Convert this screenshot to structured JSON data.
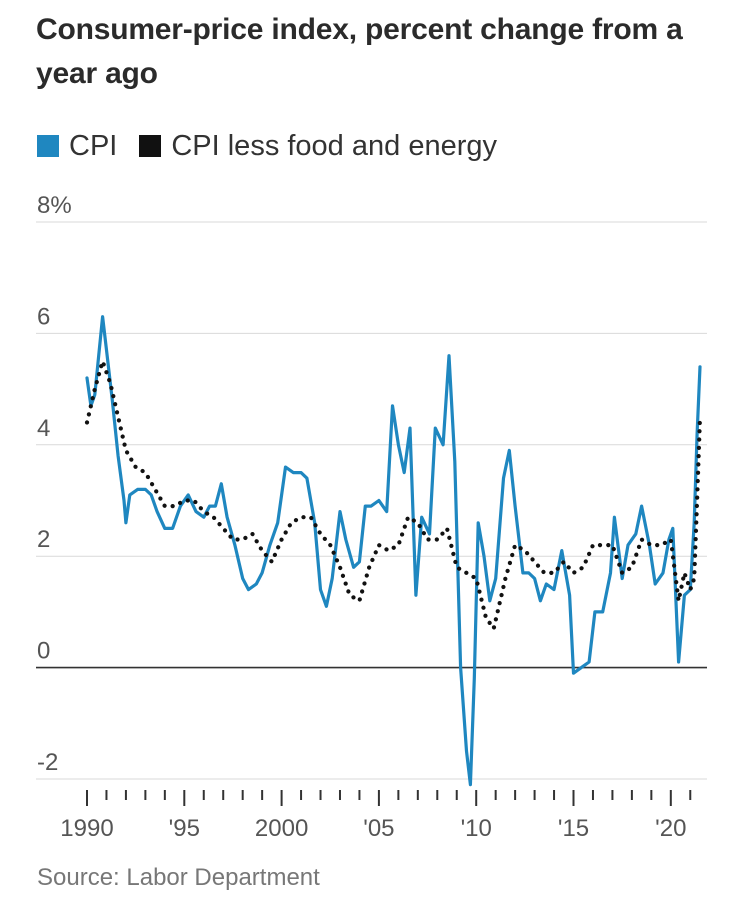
{
  "header": {
    "title": "Consumer-price index, percent change from a year ago"
  },
  "legend": [
    {
      "label": "CPI",
      "color": "#1f87c0",
      "style": "solid-line"
    },
    {
      "label": "CPI less food and energy",
      "color": "#111111",
      "style": "dotted-line"
    }
  ],
  "source": "Source: Labor Department",
  "chart_data": {
    "type": "line",
    "title": "Consumer-price index, percent change from a year ago",
    "xlabel": "",
    "ylabel": "",
    "xlim": [
      1990,
      2021.5
    ],
    "ylim": [
      -2,
      8
    ],
    "y_ticks": [
      {
        "value": 8,
        "label": "8%"
      },
      {
        "value": 6,
        "label": "6"
      },
      {
        "value": 4,
        "label": "4"
      },
      {
        "value": 2,
        "label": "2"
      },
      {
        "value": 0,
        "label": "0"
      },
      {
        "value": -2,
        "label": "-2"
      }
    ],
    "x_ticks": [
      {
        "value": 1990,
        "label": "1990"
      },
      {
        "value": 1995,
        "label": "'95"
      },
      {
        "value": 2000,
        "label": "2000"
      },
      {
        "value": 2005,
        "label": "'05"
      },
      {
        "value": 2010,
        "label": "'10"
      },
      {
        "value": 2015,
        "label": "'15"
      },
      {
        "value": 2020,
        "label": "'20"
      }
    ],
    "grid": true,
    "series": [
      {
        "name": "CPI",
        "color": "#1f87c0",
        "points": [
          [
            1990.0,
            5.2
          ],
          [
            1990.2,
            4.7
          ],
          [
            1990.4,
            4.9
          ],
          [
            1990.6,
            5.6
          ],
          [
            1990.8,
            6.3
          ],
          [
            1991.0,
            5.7
          ],
          [
            1991.3,
            4.8
          ],
          [
            1991.6,
            3.8
          ],
          [
            1991.9,
            3.0
          ],
          [
            1992.0,
            2.6
          ],
          [
            1992.2,
            3.1
          ],
          [
            1992.6,
            3.2
          ],
          [
            1993.0,
            3.2
          ],
          [
            1993.3,
            3.1
          ],
          [
            1993.6,
            2.8
          ],
          [
            1994.0,
            2.5
          ],
          [
            1994.4,
            2.5
          ],
          [
            1994.8,
            2.9
          ],
          [
            1995.2,
            3.1
          ],
          [
            1995.6,
            2.8
          ],
          [
            1996.0,
            2.7
          ],
          [
            1996.3,
            2.9
          ],
          [
            1996.6,
            2.9
          ],
          [
            1996.9,
            3.3
          ],
          [
            1997.2,
            2.7
          ],
          [
            1997.6,
            2.2
          ],
          [
            1998.0,
            1.6
          ],
          [
            1998.3,
            1.4
          ],
          [
            1998.7,
            1.5
          ],
          [
            1999.0,
            1.7
          ],
          [
            1999.4,
            2.2
          ],
          [
            1999.8,
            2.6
          ],
          [
            2000.2,
            3.6
          ],
          [
            2000.6,
            3.5
          ],
          [
            2001.0,
            3.5
          ],
          [
            2001.3,
            3.4
          ],
          [
            2001.7,
            2.6
          ],
          [
            2002.0,
            1.4
          ],
          [
            2002.3,
            1.1
          ],
          [
            2002.6,
            1.6
          ],
          [
            2003.0,
            2.8
          ],
          [
            2003.3,
            2.3
          ],
          [
            2003.7,
            1.8
          ],
          [
            2004.0,
            1.9
          ],
          [
            2004.3,
            2.9
          ],
          [
            2004.6,
            2.9
          ],
          [
            2005.0,
            3.0
          ],
          [
            2005.4,
            2.8
          ],
          [
            2005.7,
            4.7
          ],
          [
            2006.0,
            4.0
          ],
          [
            2006.3,
            3.5
          ],
          [
            2006.6,
            4.3
          ],
          [
            2006.9,
            1.3
          ],
          [
            2007.2,
            2.7
          ],
          [
            2007.6,
            2.4
          ],
          [
            2007.9,
            4.3
          ],
          [
            2008.3,
            4.0
          ],
          [
            2008.6,
            5.6
          ],
          [
            2008.9,
            3.7
          ],
          [
            2009.2,
            0.0
          ],
          [
            2009.5,
            -1.5
          ],
          [
            2009.7,
            -2.1
          ],
          [
            2009.9,
            -0.2
          ],
          [
            2010.1,
            2.6
          ],
          [
            2010.4,
            2.0
          ],
          [
            2010.7,
            1.2
          ],
          [
            2011.0,
            1.6
          ],
          [
            2011.4,
            3.4
          ],
          [
            2011.7,
            3.9
          ],
          [
            2012.0,
            2.9
          ],
          [
            2012.4,
            1.7
          ],
          [
            2012.7,
            1.7
          ],
          [
            2013.0,
            1.6
          ],
          [
            2013.3,
            1.2
          ],
          [
            2013.6,
            1.5
          ],
          [
            2014.0,
            1.4
          ],
          [
            2014.4,
            2.1
          ],
          [
            2014.8,
            1.3
          ],
          [
            2015.0,
            -0.1
          ],
          [
            2015.4,
            0.0
          ],
          [
            2015.8,
            0.1
          ],
          [
            2016.1,
            1.0
          ],
          [
            2016.5,
            1.0
          ],
          [
            2016.9,
            1.7
          ],
          [
            2017.1,
            2.7
          ],
          [
            2017.5,
            1.6
          ],
          [
            2017.8,
            2.2
          ],
          [
            2018.2,
            2.4
          ],
          [
            2018.5,
            2.9
          ],
          [
            2018.9,
            2.2
          ],
          [
            2019.2,
            1.5
          ],
          [
            2019.6,
            1.7
          ],
          [
            2019.9,
            2.3
          ],
          [
            2020.1,
            2.5
          ],
          [
            2020.4,
            0.1
          ],
          [
            2020.7,
            1.3
          ],
          [
            2021.0,
            1.4
          ],
          [
            2021.2,
            2.6
          ],
          [
            2021.35,
            4.2
          ],
          [
            2021.5,
            5.4
          ]
        ]
      },
      {
        "name": "CPI less food and energy",
        "color": "#111111",
        "points": [
          [
            1990.0,
            4.4
          ],
          [
            1990.4,
            5.0
          ],
          [
            1990.8,
            5.5
          ],
          [
            1991.2,
            5.1
          ],
          [
            1991.6,
            4.5
          ],
          [
            1992.0,
            3.9
          ],
          [
            1992.5,
            3.6
          ],
          [
            1993.0,
            3.5
          ],
          [
            1993.5,
            3.2
          ],
          [
            1994.0,
            2.9
          ],
          [
            1994.5,
            2.9
          ],
          [
            1995.0,
            3.0
          ],
          [
            1995.5,
            3.0
          ],
          [
            1996.0,
            2.8
          ],
          [
            1996.5,
            2.7
          ],
          [
            1997.0,
            2.5
          ],
          [
            1997.5,
            2.3
          ],
          [
            1998.0,
            2.3
          ],
          [
            1998.5,
            2.4
          ],
          [
            1999.0,
            2.1
          ],
          [
            1999.5,
            1.9
          ],
          [
            2000.0,
            2.3
          ],
          [
            2000.5,
            2.6
          ],
          [
            2001.0,
            2.7
          ],
          [
            2001.5,
            2.7
          ],
          [
            2002.0,
            2.4
          ],
          [
            2002.5,
            2.2
          ],
          [
            2003.0,
            1.8
          ],
          [
            2003.5,
            1.3
          ],
          [
            2004.0,
            1.2
          ],
          [
            2004.5,
            1.8
          ],
          [
            2005.0,
            2.2
          ],
          [
            2005.5,
            2.1
          ],
          [
            2006.0,
            2.2
          ],
          [
            2006.5,
            2.7
          ],
          [
            2007.0,
            2.6
          ],
          [
            2007.5,
            2.3
          ],
          [
            2008.0,
            2.3
          ],
          [
            2008.5,
            2.5
          ],
          [
            2009.0,
            1.8
          ],
          [
            2009.5,
            1.7
          ],
          [
            2010.0,
            1.6
          ],
          [
            2010.5,
            0.9
          ],
          [
            2010.9,
            0.7
          ],
          [
            2011.5,
            1.6
          ],
          [
            2012.0,
            2.2
          ],
          [
            2012.5,
            2.1
          ],
          [
            2013.0,
            1.9
          ],
          [
            2013.5,
            1.7
          ],
          [
            2014.0,
            1.7
          ],
          [
            2014.5,
            1.9
          ],
          [
            2015.0,
            1.7
          ],
          [
            2015.5,
            1.8
          ],
          [
            2016.0,
            2.2
          ],
          [
            2016.5,
            2.2
          ],
          [
            2017.0,
            2.2
          ],
          [
            2017.5,
            1.7
          ],
          [
            2018.0,
            1.8
          ],
          [
            2018.5,
            2.3
          ],
          [
            2019.0,
            2.2
          ],
          [
            2019.5,
            2.2
          ],
          [
            2020.0,
            2.3
          ],
          [
            2020.4,
            1.2
          ],
          [
            2020.7,
            1.7
          ],
          [
            2021.0,
            1.4
          ],
          [
            2021.2,
            1.6
          ],
          [
            2021.35,
            3.0
          ],
          [
            2021.5,
            4.5
          ]
        ]
      }
    ]
  }
}
